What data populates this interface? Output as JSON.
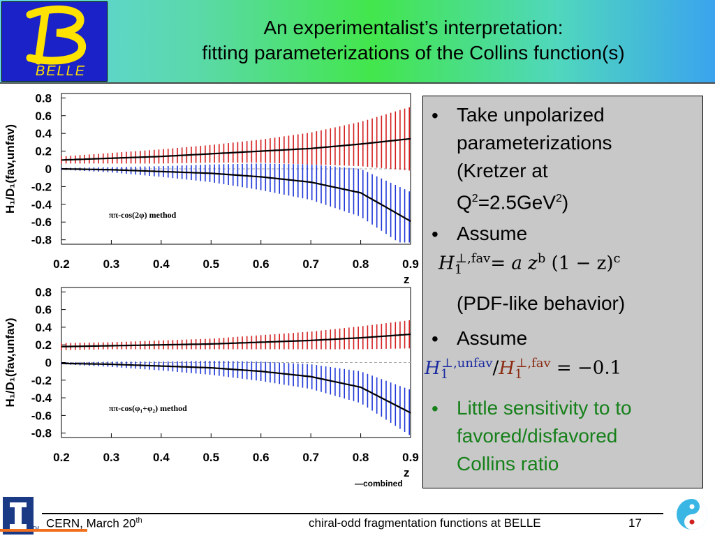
{
  "header": {
    "title_line1": "An experimentalist’s interpretation:",
    "title_line2": "fitting parameterizations of the Collins function(s)",
    "logo_text": "BELLE"
  },
  "chart_data": [
    {
      "type": "line",
      "method_label": "ππ-cos(2φ) method",
      "ylabel": "H₁/D₁(fav,unfav)",
      "xlabel": "z",
      "x_ticks": [
        "0.2",
        "0.3",
        "0.4",
        "0.5",
        "0.6",
        "0.7",
        "0.8",
        "0.9"
      ],
      "y_ticks": [
        "0.8",
        "0.6",
        "0.4",
        "0.2",
        "0",
        "-0.2",
        "-0.4",
        "-0.6",
        "-0.8"
      ],
      "xlim": [
        0.2,
        0.9
      ],
      "ylim": [
        -0.85,
        0.85
      ],
      "series": [
        {
          "name": "fav",
          "color": "#d42020",
          "x": [
            0.2,
            0.3,
            0.4,
            0.5,
            0.6,
            0.7,
            0.8,
            0.9
          ],
          "y": [
            0.1,
            0.12,
            0.14,
            0.17,
            0.2,
            0.23,
            0.28,
            0.34
          ],
          "band": [
            0.04,
            0.06,
            0.08,
            0.1,
            0.13,
            0.18,
            0.25,
            0.36
          ]
        },
        {
          "name": "unfav",
          "color": "#2038d8",
          "x": [
            0.2,
            0.3,
            0.4,
            0.5,
            0.6,
            0.7,
            0.8,
            0.9
          ],
          "y": [
            0.0,
            -0.01,
            -0.03,
            -0.05,
            -0.09,
            -0.15,
            -0.27,
            -0.59
          ],
          "band": [
            0.01,
            0.03,
            0.06,
            0.1,
            0.15,
            0.2,
            0.27,
            0.33
          ]
        }
      ]
    },
    {
      "type": "line",
      "method_label": "ππ-cos(φ₁+φ₂) method",
      "ylabel": "H₁/D₁(fav,unfav)",
      "xlabel": "z",
      "footnote": "combined",
      "x_ticks": [
        "0.2",
        "0.3",
        "0.4",
        "0.5",
        "0.6",
        "0.7",
        "0.8",
        "0.9"
      ],
      "y_ticks": [
        "0.8",
        "0.6",
        "0.4",
        "0.2",
        "0",
        "-0.2",
        "-0.4",
        "-0.6",
        "-0.8"
      ],
      "xlim": [
        0.2,
        0.9
      ],
      "ylim": [
        -0.85,
        0.85
      ],
      "series": [
        {
          "name": "fav",
          "color": "#d42020",
          "x": [
            0.2,
            0.3,
            0.4,
            0.5,
            0.6,
            0.7,
            0.8,
            0.9
          ],
          "y": [
            0.18,
            0.19,
            0.2,
            0.21,
            0.23,
            0.25,
            0.28,
            0.32
          ],
          "band": [
            0.04,
            0.04,
            0.05,
            0.06,
            0.08,
            0.1,
            0.13,
            0.16
          ]
        },
        {
          "name": "unfav",
          "color": "#2038d8",
          "x": [
            0.2,
            0.3,
            0.4,
            0.5,
            0.6,
            0.7,
            0.8,
            0.9
          ],
          "y": [
            -0.01,
            -0.02,
            -0.04,
            -0.06,
            -0.1,
            -0.16,
            -0.28,
            -0.57
          ],
          "band": [
            0.01,
            0.03,
            0.05,
            0.08,
            0.11,
            0.14,
            0.18,
            0.26
          ]
        }
      ]
    }
  ],
  "bullets": {
    "b1_l1": "Take unpolarized",
    "b1_l2": "parameterizations",
    "b1_l3": "(Kretzer at",
    "b1_l4a": "Q",
    "b1_l4sup1": "2",
    "b1_l4b": "=2.5GeV",
    "b1_l4sup2": "2",
    "b1_l4c": ")",
    "b2": "Assume",
    "b2_note": "(PDF-like behavior)",
    "b3": "Assume",
    "b4_l1": "Little sensitivity to to",
    "b4_l2": "favored/disfavored",
    "b4_l3": "Collins ratio",
    "bullet_char": "•"
  },
  "formula1": {
    "H": "H",
    "sub": "1",
    "sup": "⊥,fav",
    "rest": "= a z",
    "b": "b",
    "mid": " (1 − z)",
    "c": "c"
  },
  "formula2": {
    "H": "H",
    "sub": "1",
    "sup": "⊥,unfav",
    "slash": "/",
    "H2": "H",
    "sub2": "1",
    "sup2": "⊥,fav",
    "rest": " = −0.1",
    "color_unfav": "#1a2aa0",
    "color_fav": "#8a2a10"
  },
  "footer": {
    "left_a": "CERN, March 20",
    "left_sup": "th",
    "center": "chiral-odd fragmentation functions at BELLE",
    "page": "17",
    "ui_mark": "TM"
  }
}
